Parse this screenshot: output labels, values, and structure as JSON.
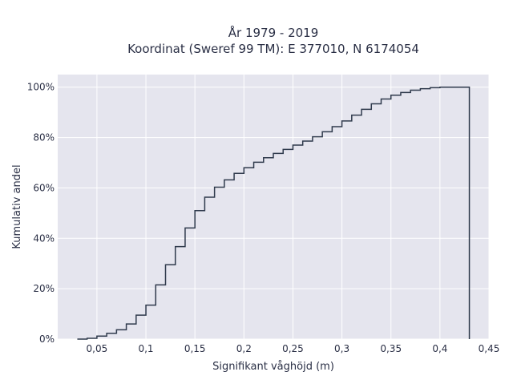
{
  "chart_data": {
    "type": "line",
    "subtype": "cumulative-step",
    "title": "År 1979 - 2019",
    "subtitle": "Koordinat (Sweref 99 TM): E 377010, N 6174054",
    "xlabel": "Signifikant våghöjd (m)",
    "ylabel": "Kumulativ andel",
    "xlim": [
      0.01,
      0.45
    ],
    "ylim": [
      0,
      1.05
    ],
    "x_ticks": [
      0.05,
      0.1,
      0.15,
      0.2,
      0.25,
      0.3,
      0.35,
      0.4,
      0.45
    ],
    "x_tick_labels": [
      "0,05",
      "0,1",
      "0,15",
      "0,2",
      "0,25",
      "0,3",
      "0,35",
      "0,4",
      "0,45"
    ],
    "y_ticks": [
      0,
      0.2,
      0.4,
      0.6,
      0.8,
      1.0
    ],
    "y_tick_labels": [
      "0%",
      "20%",
      "40%",
      "60%",
      "80%",
      "100%"
    ],
    "grid": true,
    "colors": {
      "background": "#e5e5ee",
      "line": "#2f3a4c",
      "grid": "#ffffff"
    },
    "x": [
      0.03,
      0.04,
      0.05,
      0.06,
      0.07,
      0.08,
      0.09,
      0.1,
      0.11,
      0.12,
      0.13,
      0.14,
      0.15,
      0.16,
      0.17,
      0.18,
      0.19,
      0.2,
      0.21,
      0.22,
      0.23,
      0.24,
      0.25,
      0.26,
      0.27,
      0.28,
      0.29,
      0.3,
      0.31,
      0.32,
      0.33,
      0.34,
      0.35,
      0.36,
      0.37,
      0.38,
      0.39,
      0.4,
      0.41,
      0.42,
      0.43
    ],
    "y": [
      0.0,
      0.003,
      0.012,
      0.023,
      0.037,
      0.06,
      0.095,
      0.135,
      0.215,
      0.295,
      0.367,
      0.441,
      0.51,
      0.563,
      0.603,
      0.632,
      0.658,
      0.68,
      0.702,
      0.72,
      0.737,
      0.753,
      0.77,
      0.786,
      0.803,
      0.823,
      0.843,
      0.866,
      0.889,
      0.912,
      0.934,
      0.953,
      0.968,
      0.979,
      0.988,
      0.994,
      0.998,
      1.0,
      1.0,
      1.0,
      0.0
    ]
  }
}
